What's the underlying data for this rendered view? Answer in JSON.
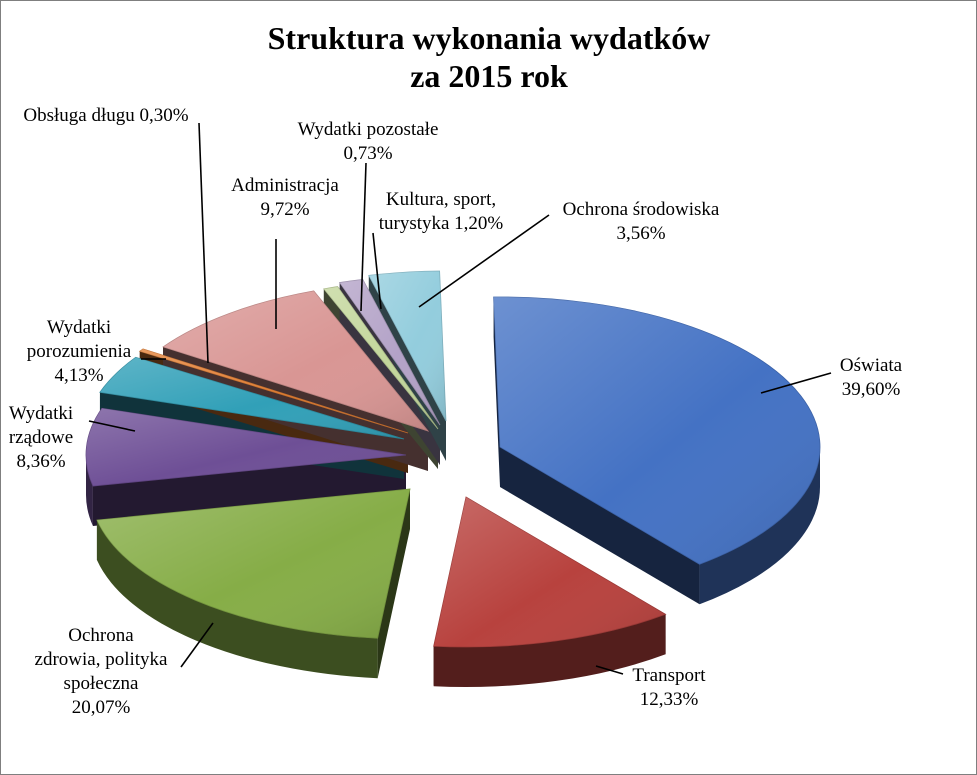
{
  "chart_data": {
    "type": "pie",
    "style": "3d-exploded",
    "title_lines": [
      "Struktura wykonania wydatków",
      "za 2015 rok"
    ],
    "legend": "none",
    "slices": [
      {
        "name": "Oświata",
        "value": 39.6,
        "value_label": "39,60%",
        "color": "#4472c4"
      },
      {
        "name": "Transport",
        "value": 12.33,
        "value_label": "12,33%",
        "color": "#b8423e"
      },
      {
        "name": "Ochrona zdrowia, polityka społeczna",
        "value": 20.07,
        "value_label": "20,07%",
        "color": "#86ad47"
      },
      {
        "name": "Wydatki rządowe",
        "value": 8.36,
        "value_label": "8,36%",
        "color": "#6e4f96"
      },
      {
        "name": "Wydatki porozumienia",
        "value": 4.13,
        "value_label": "4,13%",
        "color": "#31a0b8"
      },
      {
        "name": "Obsługa długu",
        "value": 0.3,
        "value_label": "0,30%",
        "color": "#e47f33"
      },
      {
        "name": "Administracja",
        "value": 9.72,
        "value_label": "9,72%",
        "color": "#d99694"
      },
      {
        "name": "Wydatki pozostałe",
        "value": 0.73,
        "value_label": "0,73%",
        "color": "#c3d69b"
      },
      {
        "name": "Kultura, sport, turystyka",
        "value": 1.2,
        "value_label": "1,20%",
        "color": "#b3a2c7"
      },
      {
        "name": "Ochrona środowiska",
        "value": 3.56,
        "value_label": "3,56%",
        "color": "#93cddd"
      }
    ],
    "label_lines": [
      [
        "Oświata",
        "39,60%"
      ],
      [
        "Transport",
        "12,33%"
      ],
      [
        "Ochrona",
        "zdrowia, polityka",
        "społeczna",
        "20,07%"
      ],
      [
        "Wydatki",
        "rządowe",
        "8,36%"
      ],
      [
        "Wydatki",
        "porozumienia",
        "4,13%"
      ],
      [
        "Obsługa długu 0,30%"
      ],
      [
        "Administracja",
        "9,72%"
      ],
      [
        "Wydatki  pozostałe",
        "0,73%"
      ],
      [
        "Kultura, sport,",
        "turystyka  1,20%"
      ],
      [
        "Ochrona środowiska",
        "3,56%"
      ]
    ]
  }
}
